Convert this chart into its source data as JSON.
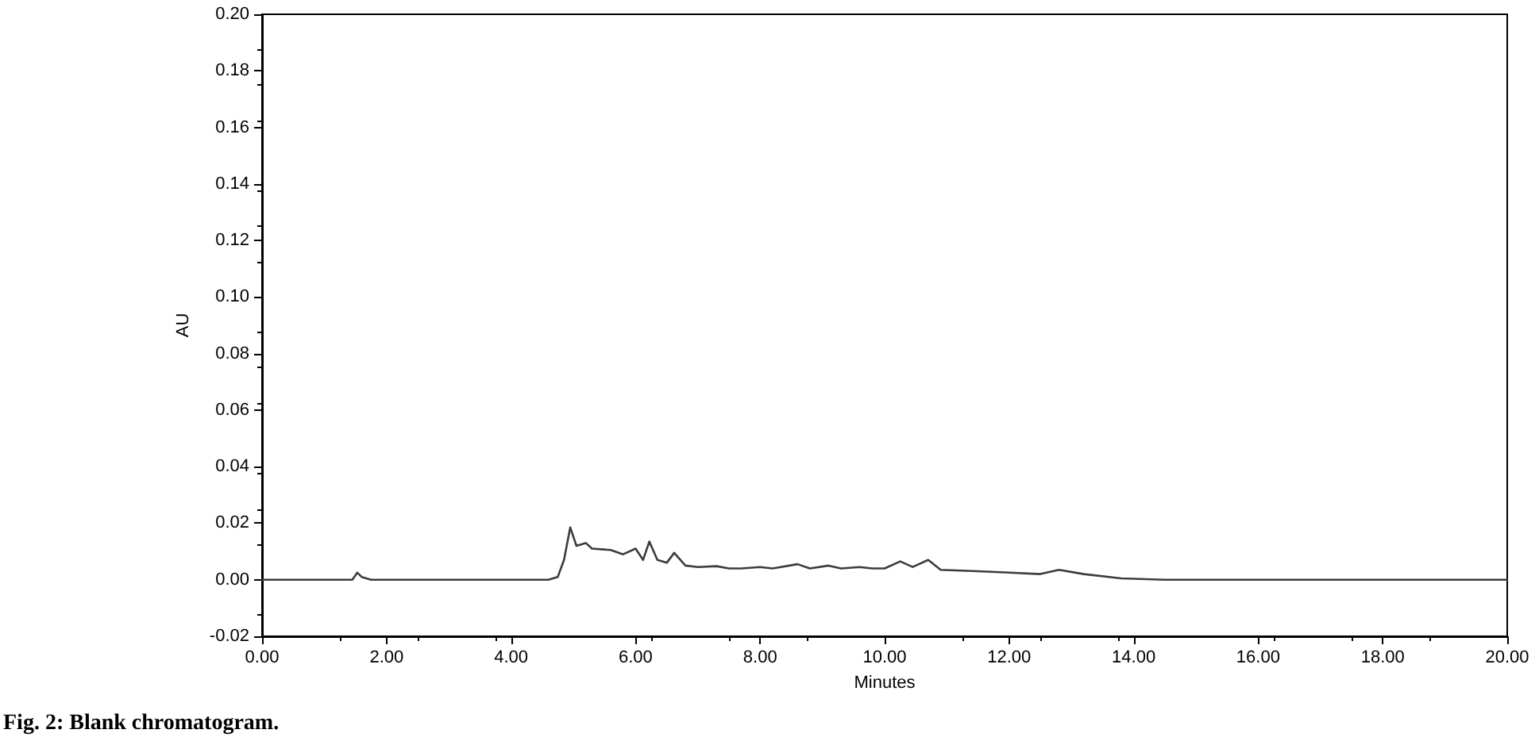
{
  "chart_data": {
    "type": "line",
    "xlabel": "Minutes",
    "ylabel": "AU",
    "annotations": [
      "Fig. 2: Blank chromatogram."
    ],
    "x": [
      0,
      1.45,
      1.53,
      1.6,
      1.75,
      4.6,
      4.75,
      4.85,
      4.95,
      5.05,
      5.2,
      5.3,
      5.6,
      5.8,
      6.0,
      6.12,
      6.22,
      6.35,
      6.5,
      6.62,
      6.8,
      7.0,
      7.3,
      7.5,
      7.7,
      8.0,
      8.2,
      8.6,
      8.8,
      9.1,
      9.3,
      9.6,
      9.8,
      10.0,
      10.25,
      10.45,
      10.7,
      10.9,
      11.5,
      12.0,
      12.5,
      12.8,
      13.2,
      13.8,
      14.5,
      20
    ],
    "series": [
      {
        "color": "#3c3c3c",
        "values": [
          0,
          0,
          0.0025,
          0.001,
          0,
          0,
          0.001,
          0.007,
          0.0185,
          0.012,
          0.013,
          0.011,
          0.0105,
          0.009,
          0.011,
          0.007,
          0.0135,
          0.007,
          0.006,
          0.0095,
          0.005,
          0.0045,
          0.0048,
          0.004,
          0.004,
          0.0045,
          0.004,
          0.0055,
          0.004,
          0.005,
          0.004,
          0.0045,
          0.004,
          0.004,
          0.0065,
          0.0045,
          0.007,
          0.0035,
          0.003,
          0.0025,
          0.002,
          0.0035,
          0.002,
          0.0005,
          0,
          0
        ]
      }
    ],
    "xlim": [
      0,
      20
    ],
    "xticks": [
      {
        "value": 0,
        "label": "0.00"
      },
      {
        "value": 2,
        "label": "2.00"
      },
      {
        "value": 4,
        "label": "4.00"
      },
      {
        "value": 6,
        "label": "6.00"
      },
      {
        "value": 8,
        "label": "8.00"
      },
      {
        "value": 10,
        "label": "10.00"
      },
      {
        "value": 12,
        "label": "12.00"
      },
      {
        "value": 14,
        "label": "14.00"
      },
      {
        "value": 16,
        "label": "16.00"
      },
      {
        "value": 18,
        "label": "18.00"
      },
      {
        "value": 20,
        "label": "20.00"
      }
    ],
    "ylim": [
      -0.02,
      0.2
    ],
    "yticks": [
      {
        "value": -0.02,
        "label": "-0.02"
      },
      {
        "value": 0,
        "label": "0.00"
      },
      {
        "value": 0.02,
        "label": "0.02"
      },
      {
        "value": 0.04,
        "label": "0.04"
      },
      {
        "value": 0.06,
        "label": "0.06"
      },
      {
        "value": 0.08,
        "label": "0.08"
      },
      {
        "value": 0.1,
        "label": "0.10"
      },
      {
        "value": 0.12,
        "label": "0.12"
      },
      {
        "value": 0.14,
        "label": "0.14"
      },
      {
        "value": 0.16,
        "label": "0.16"
      },
      {
        "value": 0.18,
        "label": "0.18"
      },
      {
        "value": 0.2,
        "label": "0.20"
      }
    ],
    "marker": "none",
    "line_style": "solid"
  }
}
